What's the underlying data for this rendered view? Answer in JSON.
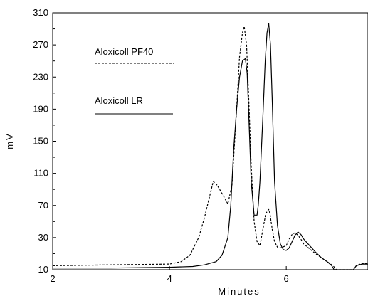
{
  "chart_data": {
    "type": "line",
    "xlabel": "Minutes",
    "ylabel": "mV",
    "xlim": [
      2,
      7.4
    ],
    "ylim": [
      -10,
      310
    ],
    "x_ticks": [
      2,
      4,
      6
    ],
    "y_ticks": [
      -10,
      30,
      70,
      110,
      150,
      190,
      230,
      270,
      310
    ],
    "x_tick_labels": [
      "2",
      "4",
      "6"
    ],
    "y_tick_labels": [
      "-10",
      "30",
      "70",
      "110",
      "150",
      "190",
      "230",
      "270",
      "310"
    ],
    "grid": false,
    "legend_position": "top-left",
    "series": [
      {
        "name": "Aloxicoll PF40",
        "line_style": "dashed",
        "color": "#000000",
        "x": [
          2.0,
          3.0,
          4.0,
          4.2,
          4.35,
          4.5,
          4.6,
          4.7,
          4.75,
          4.82,
          4.9,
          5.0,
          5.07,
          5.1,
          5.15,
          5.2,
          5.25,
          5.28,
          5.32,
          5.36,
          5.4,
          5.45,
          5.5,
          5.55,
          5.6,
          5.65,
          5.7,
          5.72,
          5.76,
          5.8,
          5.85,
          5.9,
          6.0,
          6.05,
          6.1,
          6.15,
          6.2,
          6.25,
          6.3,
          6.4,
          6.5,
          6.6,
          6.7,
          6.8,
          6.86,
          6.9,
          7.0,
          7.1,
          7.15,
          7.2,
          7.3,
          7.4
        ],
        "y": [
          -5,
          -4,
          -3,
          0,
          8,
          30,
          55,
          85,
          100,
          95,
          85,
          72,
          95,
          130,
          190,
          255,
          285,
          293,
          270,
          200,
          120,
          50,
          25,
          20,
          40,
          60,
          65,
          60,
          40,
          25,
          18,
          17,
          20,
          28,
          34,
          36,
          33,
          28,
          22,
          16,
          10,
          5,
          0,
          -5,
          -10,
          -10,
          -10,
          -10,
          -10,
          -5,
          -2,
          -2
        ]
      },
      {
        "name": "Aloxicoll LR",
        "line_style": "solid",
        "color": "#000000",
        "x": [
          2.0,
          3.0,
          4.0,
          4.4,
          4.6,
          4.8,
          4.9,
          5.0,
          5.05,
          5.1,
          5.15,
          5.2,
          5.25,
          5.3,
          5.33,
          5.36,
          5.4,
          5.45,
          5.5,
          5.52,
          5.55,
          5.6,
          5.64,
          5.67,
          5.7,
          5.73,
          5.76,
          5.8,
          5.85,
          5.9,
          5.95,
          6.0,
          6.05,
          6.1,
          6.15,
          6.2,
          6.25,
          6.3,
          6.4,
          6.5,
          6.6,
          6.7,
          6.78,
          6.82,
          6.86,
          6.9,
          7.0,
          7.1,
          7.15,
          7.2,
          7.3,
          7.4
        ],
        "y": [
          -8,
          -8,
          -7,
          -6,
          -4,
          0,
          8,
          30,
          70,
          140,
          190,
          230,
          250,
          253,
          235,
          180,
          100,
          58,
          58,
          70,
          100,
          180,
          250,
          285,
          297,
          270,
          200,
          100,
          45,
          22,
          15,
          14,
          17,
          25,
          33,
          37,
          34,
          28,
          20,
          12,
          5,
          0,
          -5,
          -10,
          -10,
          -10,
          -10,
          -10,
          -10,
          -5,
          -3,
          -3
        ]
      }
    ]
  }
}
